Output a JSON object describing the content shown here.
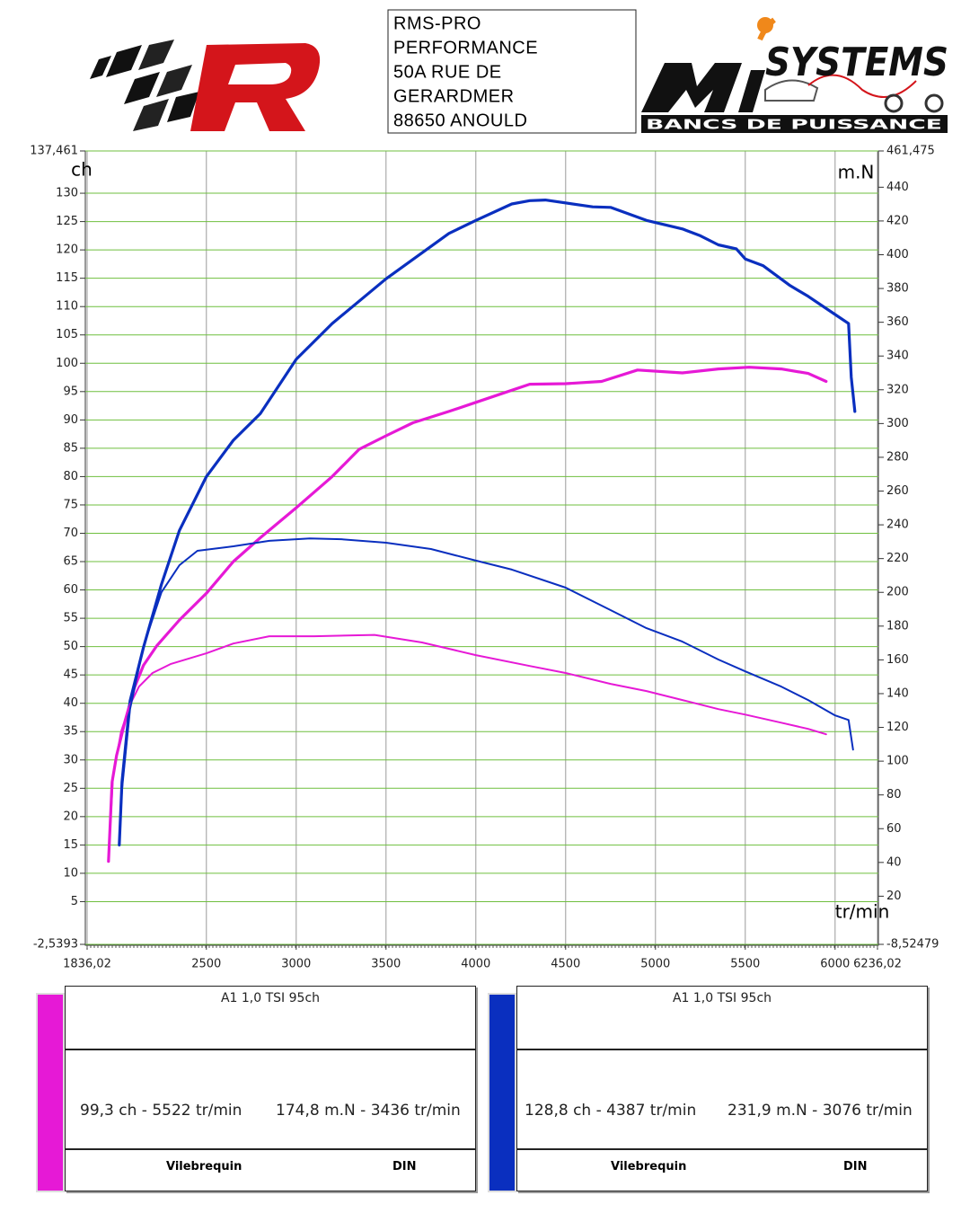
{
  "header": {
    "address": [
      "RMS-PRO",
      "PERFORMANCE",
      "50A RUE DE",
      "GERARDMER",
      "88650 ANOULD"
    ],
    "logo_brand": "SYSTEMS",
    "logo_tagline": "BANCS DE PUISSANCE"
  },
  "chart_data": {
    "type": "line",
    "y_label": "ch",
    "y2_label": "m.N",
    "x_label": "tr/min",
    "xlim": [
      1836.02,
      6236.02
    ],
    "xticks": [
      {
        "value": 1836.02,
        "label": "1836,02"
      },
      2500,
      3000,
      3500,
      4000,
      4500,
      5000,
      5500,
      6000,
      {
        "value": 6236.02,
        "label": "6236,02"
      }
    ],
    "ylim": [
      -2.5393,
      137.461
    ],
    "yticks": [
      {
        "value": 137.461,
        "label": "137,461"
      },
      130,
      125,
      120,
      115,
      110,
      105,
      100,
      95,
      90,
      85,
      80,
      75,
      70,
      65,
      60,
      55,
      50,
      45,
      40,
      35,
      30,
      25,
      20,
      15,
      10,
      5,
      {
        "value": -2.5393,
        "label": "-2,5393"
      }
    ],
    "y2lim": [
      -8.52479,
      461.475
    ],
    "y2ticks": [
      {
        "value": 461.475,
        "label": "461,475"
      },
      440,
      420,
      400,
      380,
      360,
      340,
      320,
      300,
      280,
      260,
      240,
      220,
      200,
      180,
      160,
      140,
      120,
      100,
      80,
      60,
      40,
      20,
      {
        "value": -8.52479,
        "label": "-8,52479"
      }
    ],
    "grid": true,
    "grid_color": "#6fbf3f",
    "series": [
      {
        "color": "#e619d6",
        "axis": "y",
        "x": [
          1955,
          1975,
          2000,
          2050,
          2100,
          2150,
          2225,
          2350,
          2500,
          2650,
          2800,
          3000,
          3200,
          3350,
          3500,
          3650,
          3850,
          4000,
          4150,
          4300,
          4500,
          4700,
          4900,
          5150,
          5350,
          5522,
          5700,
          5850,
          5950
        ],
        "values": [
          12.1,
          26.1,
          30.8,
          37.2,
          42.8,
          46.7,
          50.2,
          54.7,
          59.4,
          65.0,
          69.2,
          74.5,
          80.0,
          84.8,
          87.2,
          89.5,
          91.5,
          93.1,
          94.7,
          96.3,
          96.4,
          96.8,
          98.8,
          98.3,
          99.0,
          99.3,
          99.0,
          98.2,
          96.8
        ]
      },
      {
        "color": "#0a2fbf",
        "axis": "y",
        "x": [
          2015,
          2030,
          2075,
          2150,
          2250,
          2350,
          2500,
          2650,
          2800,
          3000,
          3200,
          3500,
          3850,
          4000,
          4200,
          4300,
          4387,
          4650,
          4750,
          4950,
          5150,
          5250,
          5350,
          5450,
          5500,
          5600,
          5750,
          5850,
          6000,
          6075,
          6090,
          6110
        ],
        "values": [
          15.0,
          26.1,
          40.4,
          49.9,
          61.0,
          70.5,
          80.0,
          86.4,
          91.1,
          100.7,
          107.0,
          114.9,
          122.9,
          125.2,
          128.1,
          128.7,
          128.8,
          127.6,
          127.5,
          125.2,
          123.7,
          122.5,
          120.9,
          120.2,
          118.4,
          117.2,
          113.7,
          111.8,
          108.6,
          107.0,
          97.5,
          91.5
        ]
      },
      {
        "color": "#e619d6",
        "axis": "y2",
        "x": [
          1955,
          1980,
          2025,
          2075,
          2125,
          2200,
          2300,
          2500,
          2650,
          2850,
          3100,
          3436,
          3700,
          4000,
          4300,
          4500,
          4750,
          4950,
          5150,
          5350,
          5500,
          5700,
          5850,
          5950
        ],
        "values": [
          41.3,
          90.9,
          117.5,
          133.5,
          144.2,
          152.2,
          157.5,
          163.9,
          169.7,
          174.0,
          174.0,
          174.8,
          170.3,
          162.8,
          156.4,
          152.2,
          145.8,
          141.5,
          136.2,
          130.8,
          127.6,
          122.8,
          119.1,
          115.9
        ]
      },
      {
        "color": "#0a2fbf",
        "axis": "y2",
        "x": [
          2015,
          2030,
          2075,
          2150,
          2250,
          2350,
          2450,
          2650,
          2850,
          3076,
          3250,
          3500,
          3750,
          4000,
          4200,
          4500,
          4750,
          4950,
          5150,
          5350,
          5500,
          5700,
          5850,
          6000,
          6075,
          6100
        ],
        "values": [
          50.9,
          82.9,
          130.8,
          168.1,
          200.1,
          216.1,
          224.6,
          227.3,
          230.5,
          231.9,
          231.5,
          229.4,
          225.7,
          218.8,
          213.5,
          202.8,
          189.5,
          178.8,
          170.8,
          160.2,
          153.2,
          144.2,
          136.2,
          127.1,
          124.4,
          106.8
        ]
      }
    ]
  },
  "panels": [
    {
      "color": "#e619d6",
      "title": "A1 1,0 TSI 95ch",
      "power": "99,3 ch - 5522 tr/min",
      "torque": "174,8 m.N - 3436 tr/min",
      "mode": "Vilebrequin",
      "norm": "DIN"
    },
    {
      "color": "#0a2fbf",
      "title": "A1 1,0 TSI 95ch",
      "power": "128,8 ch - 4387 tr/min",
      "torque": "231,9 m.N - 3076 tr/min",
      "mode": "Vilebrequin",
      "norm": "DIN"
    }
  ]
}
